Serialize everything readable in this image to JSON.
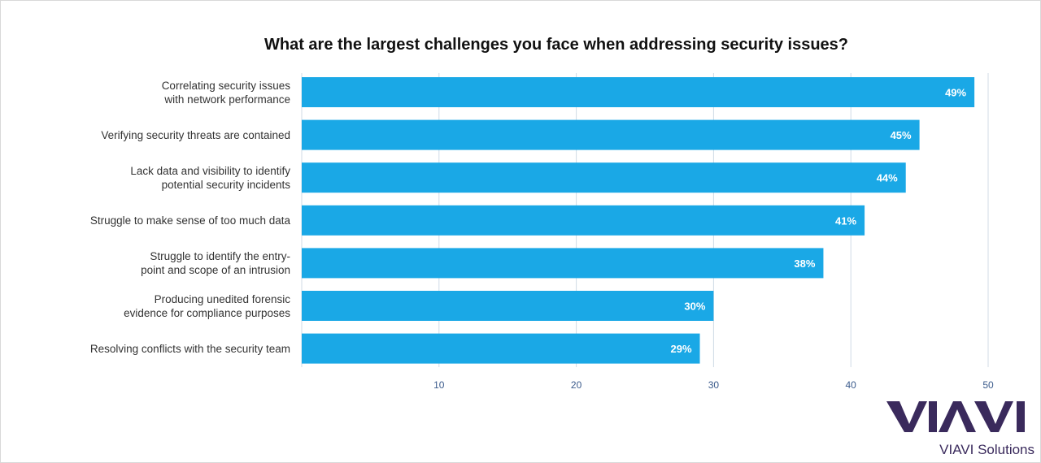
{
  "chart_data": {
    "type": "bar",
    "orientation": "horizontal",
    "title": "What are the largest challenges you face when addressing security issues?",
    "categories": [
      "Correlating security issues\nwith network performance",
      "Verifying security threats are contained",
      "Lack data and visibility to identify\npotential security incidents",
      "Struggle to make sense of too much data",
      "Struggle to identify the entry-\npoint and scope of an intrusion",
      "Producing unedited forensic\nevidence for compliance purposes",
      "Resolving conflicts with the security team"
    ],
    "values": [
      49,
      45,
      44,
      41,
      38,
      30,
      29
    ],
    "data_labels": [
      "49%",
      "45%",
      "44%",
      "41%",
      "38%",
      "30%",
      "29%"
    ],
    "x_ticks": [
      "10",
      "20",
      "30",
      "40",
      "50"
    ],
    "xlim": [
      0,
      50
    ],
    "grid": true,
    "bar_color": "#1aa8e6",
    "grid_color": "#d0dbe6"
  },
  "brand": {
    "logo": "VIAVI",
    "tagline": "VIAVI Solutions",
    "color": "#3a2a5c"
  }
}
